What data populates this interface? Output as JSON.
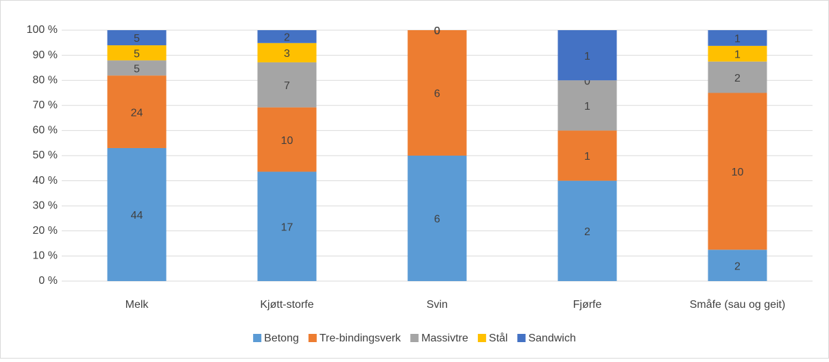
{
  "chart_data": {
    "type": "bar",
    "stacking": "percent",
    "categories": [
      "Melk",
      "Kjøtt-storfe",
      "Svin",
      "Fjørfe",
      "Småfe (sau og geit)"
    ],
    "series": [
      {
        "name": "Betong",
        "color": "#5b9bd5",
        "values": [
          44,
          17,
          6,
          2,
          2
        ]
      },
      {
        "name": "Tre-bindingsverk",
        "color": "#ed7d31",
        "values": [
          24,
          10,
          6,
          1,
          10
        ]
      },
      {
        "name": "Massivtre",
        "color": "#a5a5a5",
        "values": [
          5,
          7,
          0,
          1,
          2
        ]
      },
      {
        "name": "Stål",
        "color": "#ffc000",
        "values": [
          5,
          3,
          0,
          0,
          1
        ]
      },
      {
        "name": "Sandwich",
        "color": "#4472c4",
        "values": [
          5,
          2,
          0,
          1,
          1
        ]
      }
    ],
    "ylim": [
      0,
      100
    ],
    "yticks": [
      {
        "value": 0,
        "label": "0 %"
      },
      {
        "value": 10,
        "label": "10 %"
      },
      {
        "value": 20,
        "label": "20 %"
      },
      {
        "value": 30,
        "label": "30 %"
      },
      {
        "value": 40,
        "label": "40 %"
      },
      {
        "value": 50,
        "label": "50 %"
      },
      {
        "value": 60,
        "label": "60 %"
      },
      {
        "value": 70,
        "label": "70 %"
      },
      {
        "value": 80,
        "label": "80 %"
      },
      {
        "value": 90,
        "label": "90 %"
      },
      {
        "value": 100,
        "label": "100 %"
      }
    ],
    "grid": true,
    "legend": "bottom"
  }
}
